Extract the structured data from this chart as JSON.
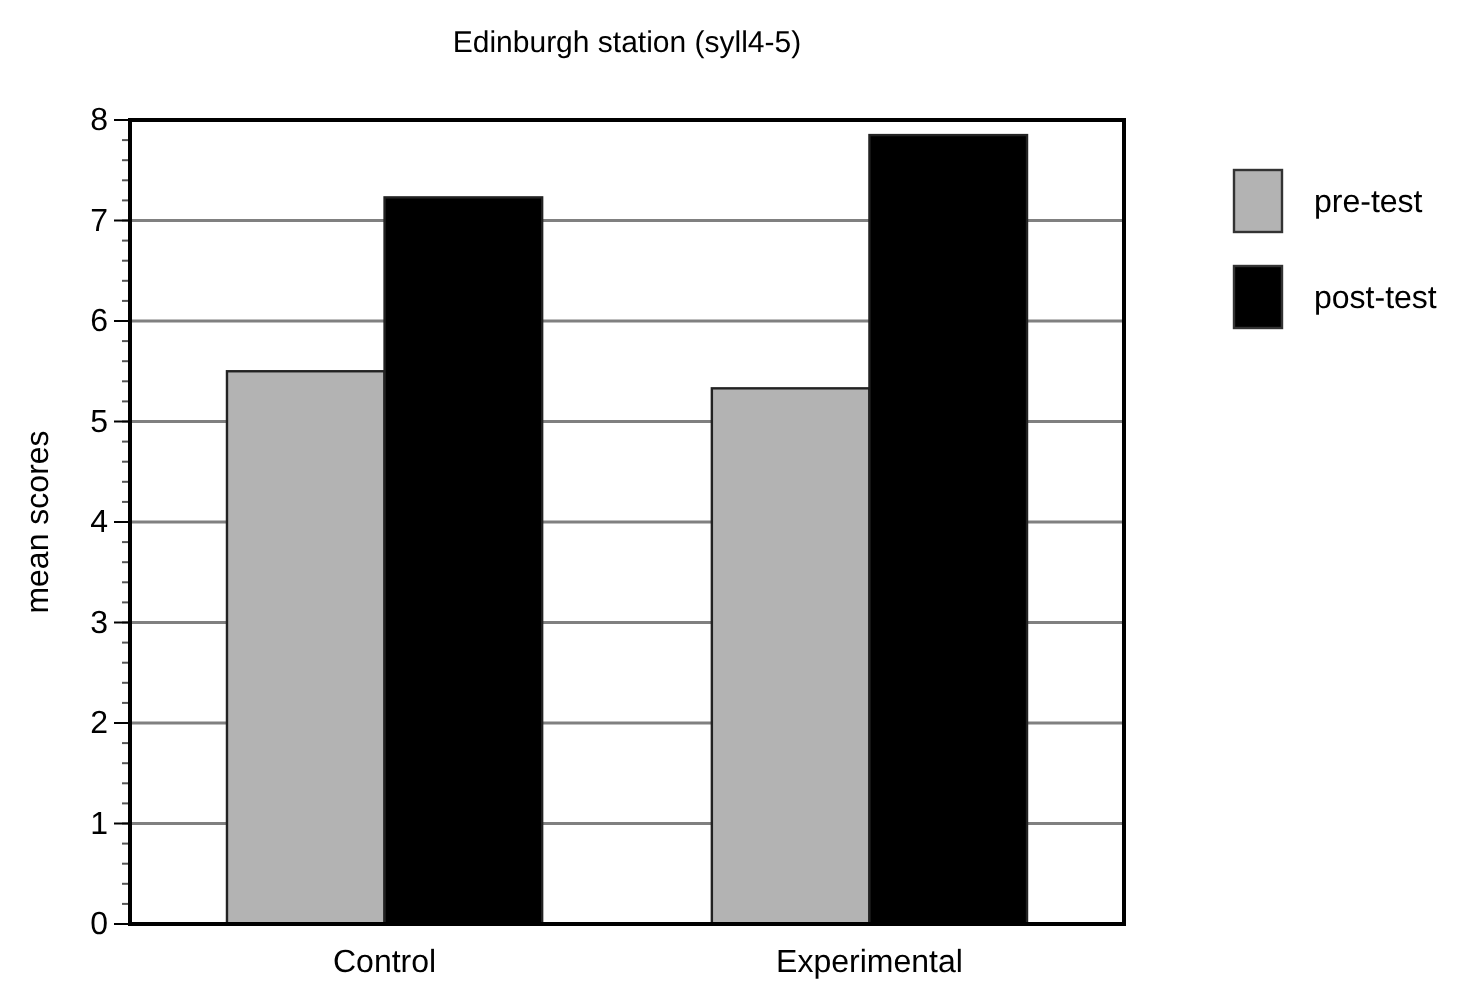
{
  "chart_data": {
    "type": "bar",
    "title": "Edinburgh station (syll4-5)",
    "ylabel": "mean scores",
    "categories": [
      "Control",
      "Experimental"
    ],
    "series": [
      {
        "name": "pre-test",
        "color": "#b3b3b3",
        "values": [
          5.5,
          5.33
        ]
      },
      {
        "name": "post-test",
        "color": "#000000",
        "values": [
          7.23,
          7.85
        ]
      }
    ],
    "ylim": [
      0,
      8
    ],
    "yticks": [
      0,
      1,
      2,
      3,
      4,
      5,
      6,
      7,
      8
    ],
    "grid": "y",
    "legend": "right"
  }
}
